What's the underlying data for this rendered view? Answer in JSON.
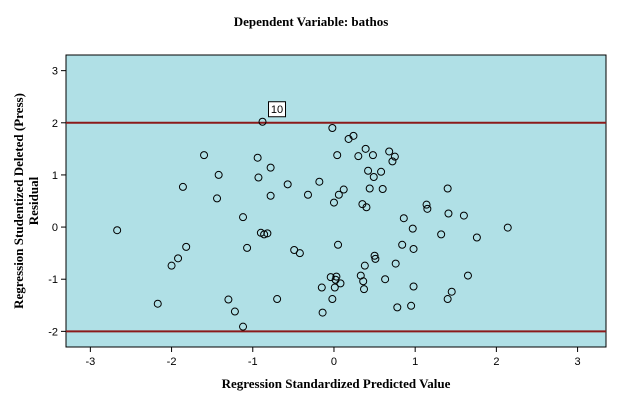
{
  "chart_data": {
    "type": "scatter",
    "title": "Dependent Variable: bathos",
    "xlabel": "Regression Standardized Predicted Value",
    "ylabel": "Regression Studentized Deleted (Press) Residual",
    "xlim": [
      -3.3,
      3.35
    ],
    "ylim": [
      -2.3,
      3.3
    ],
    "xticks": [
      -3,
      -2,
      -1,
      0,
      1,
      2,
      3
    ],
    "yticks": [
      -2,
      -1,
      0,
      1,
      2,
      3
    ],
    "grid": false,
    "legend": "none",
    "colors": {
      "plot_background": "#b0e0e6",
      "reference_line": "#8b1a1a",
      "marker_stroke": "#000000"
    },
    "reference_lines": [
      {
        "axis": "y",
        "value": 2
      },
      {
        "axis": "y",
        "value": -2
      }
    ],
    "annotations": [
      {
        "label": "10",
        "x": -0.88,
        "y": 2.02
      }
    ],
    "points": [
      [
        -2.67,
        -0.06
      ],
      [
        -2.17,
        -1.47
      ],
      [
        -2.0,
        -0.74
      ],
      [
        -1.92,
        -0.6
      ],
      [
        -1.86,
        0.77
      ],
      [
        -1.82,
        -0.38
      ],
      [
        -1.6,
        1.38
      ],
      [
        -1.42,
        1.0
      ],
      [
        -1.44,
        0.55
      ],
      [
        -1.3,
        -1.39
      ],
      [
        -1.22,
        -1.62
      ],
      [
        -1.12,
        0.19
      ],
      [
        -1.12,
        -1.91
      ],
      [
        -1.07,
        -0.4
      ],
      [
        -0.94,
        1.33
      ],
      [
        -0.93,
        0.95
      ],
      [
        -0.9,
        -0.11
      ],
      [
        -0.86,
        -0.14
      ],
      [
        -0.82,
        -0.12
      ],
      [
        -0.78,
        1.14
      ],
      [
        -0.78,
        0.6
      ],
      [
        -0.7,
        -1.38
      ],
      [
        -0.57,
        0.82
      ],
      [
        -0.49,
        -0.44
      ],
      [
        -0.42,
        -0.5
      ],
      [
        -0.32,
        0.62
      ],
      [
        -0.18,
        0.87
      ],
      [
        -0.15,
        -1.16
      ],
      [
        -0.14,
        -1.64
      ],
      [
        -0.02,
        1.9
      ],
      [
        -0.04,
        -0.96
      ],
      [
        -0.02,
        -1.38
      ],
      [
        0.0,
        0.47
      ],
      [
        0.01,
        -1.16
      ],
      [
        0.02,
        -1.01
      ],
      [
        0.04,
        1.38
      ],
      [
        0.03,
        -0.95
      ],
      [
        0.05,
        -0.34
      ],
      [
        0.06,
        0.62
      ],
      [
        0.08,
        -1.08
      ],
      [
        0.12,
        0.72
      ],
      [
        0.18,
        1.69
      ],
      [
        0.24,
        1.75
      ],
      [
        0.3,
        1.36
      ],
      [
        0.33,
        -0.93
      ],
      [
        0.35,
        0.44
      ],
      [
        0.36,
        -1.04
      ],
      [
        0.37,
        -1.19
      ],
      [
        0.38,
        -0.74
      ],
      [
        0.39,
        1.5
      ],
      [
        0.4,
        0.38
      ],
      [
        0.42,
        1.08
      ],
      [
        0.44,
        0.74
      ],
      [
        0.48,
        1.38
      ],
      [
        0.49,
        0.96
      ],
      [
        0.5,
        -0.55
      ],
      [
        0.51,
        -0.61
      ],
      [
        0.58,
        1.06
      ],
      [
        0.6,
        0.73
      ],
      [
        0.63,
        -1.0
      ],
      [
        0.68,
        1.45
      ],
      [
        0.72,
        1.26
      ],
      [
        0.75,
        1.35
      ],
      [
        0.76,
        -0.7
      ],
      [
        0.78,
        -1.54
      ],
      [
        0.84,
        -0.34
      ],
      [
        0.86,
        0.17
      ],
      [
        0.95,
        -1.51
      ],
      [
        0.97,
        -0.03
      ],
      [
        0.98,
        -1.14
      ],
      [
        0.98,
        -0.42
      ],
      [
        1.14,
        0.43
      ],
      [
        1.15,
        0.35
      ],
      [
        1.32,
        -0.14
      ],
      [
        1.4,
        -1.38
      ],
      [
        1.4,
        0.74
      ],
      [
        1.41,
        0.26
      ],
      [
        1.45,
        -1.24
      ],
      [
        1.6,
        0.22
      ],
      [
        1.65,
        -0.93
      ],
      [
        1.76,
        -0.2
      ],
      [
        2.14,
        -0.01
      ],
      [
        -0.88,
        2.02
      ]
    ]
  }
}
